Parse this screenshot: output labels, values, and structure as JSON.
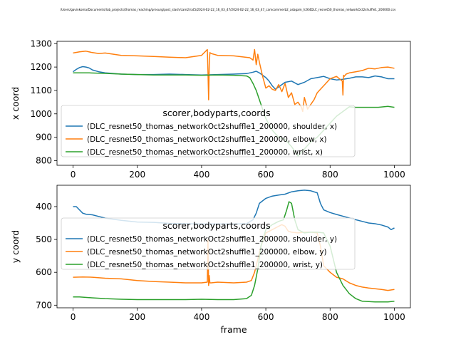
{
  "figure": {
    "suptitle": "/Users/gavinkoma/Documents/lab_projects/thomas_reaching/presurg/post_slash/cam2/rat5/2024-02-22_16_03_47/2024-02-22_16_03_47_camcommerb2_asbgam_h264DLC_resnet50_thomas_networkOct2shuffle1_200000.csv"
  },
  "colors": {
    "shoulder": "#1f77b4",
    "elbow": "#ff7f0e",
    "wrist": "#2ca02c"
  },
  "chart_data": [
    {
      "type": "line",
      "panel": "top",
      "xlabel": "",
      "ylabel": "x coord",
      "xlim": [
        -50,
        1050
      ],
      "ylim": [
        780,
        1310
      ],
      "y_inverted": false,
      "xticks": [
        0,
        200,
        400,
        600,
        800,
        1000
      ],
      "yticks": [
        800,
        900,
        1000,
        1100,
        1200,
        1300
      ],
      "grid": false,
      "legend": {
        "title": "scorer,bodyparts,coords",
        "placement": "lower-left",
        "entries": [
          "(DLC_resnet50_thomas_networkOct2shuffle1_200000, shoulder, x)",
          "(DLC_resnet50_thomas_networkOct2shuffle1_200000, elbow, x)",
          "(DLC_resnet50_thomas_networkOct2shuffle1_200000, wrist, x)"
        ]
      },
      "series": [
        {
          "name": "(DLC_resnet50_thomas_networkOct2shuffle1_200000, shoulder, x)",
          "key": "shoulder",
          "x": [
            0,
            10,
            20,
            30,
            40,
            50,
            60,
            80,
            100,
            150,
            200,
            250,
            300,
            350,
            400,
            450,
            500,
            540,
            560,
            570,
            580,
            590,
            600,
            610,
            620,
            630,
            640,
            660,
            680,
            700,
            720,
            740,
            760,
            780,
            800,
            820,
            840,
            860,
            880,
            900,
            920,
            940,
            960,
            980,
            1000
          ],
          "y": [
            1180,
            1190,
            1198,
            1202,
            1200,
            1196,
            1188,
            1180,
            1175,
            1170,
            1168,
            1168,
            1170,
            1168,
            1166,
            1168,
            1170,
            1172,
            1178,
            1182,
            1175,
            1165,
            1155,
            1140,
            1120,
            1105,
            1115,
            1135,
            1140,
            1125,
            1135,
            1150,
            1155,
            1160,
            1150,
            1145,
            1148,
            1152,
            1158,
            1158,
            1155,
            1162,
            1158,
            1150,
            1150
          ]
        },
        {
          "name": "(DLC_resnet50_thomas_networkOct2shuffle1_200000, elbow, x)",
          "key": "elbow",
          "x": [
            0,
            20,
            40,
            60,
            80,
            100,
            150,
            200,
            250,
            300,
            350,
            400,
            418,
            420,
            422,
            424,
            426,
            430,
            450,
            500,
            550,
            560,
            565,
            570,
            575,
            580,
            590,
            600,
            610,
            620,
            630,
            640,
            650,
            660,
            670,
            680,
            690,
            700,
            710,
            715,
            720,
            730,
            740,
            750,
            760,
            780,
            800,
            820,
            838,
            840,
            842,
            844,
            850,
            860,
            880,
            900,
            920,
            940,
            960,
            980,
            1000
          ],
          "y": [
            1260,
            1265,
            1268,
            1262,
            1258,
            1260,
            1250,
            1248,
            1245,
            1242,
            1240,
            1250,
            1275,
            1180,
            1060,
            1210,
            1262,
            1258,
            1250,
            1248,
            1240,
            1230,
            1275,
            1210,
            1255,
            1220,
            1160,
            1110,
            1120,
            1105,
            1100,
            1125,
            1095,
            1130,
            1070,
            1090,
            1040,
            1050,
            1030,
            1010,
            1070,
            1020,
            1040,
            1060,
            1090,
            1120,
            1150,
            1160,
            1140,
            1080,
            1165,
            1160,
            1170,
            1175,
            1180,
            1185,
            1195,
            1192,
            1198,
            1200,
            1195
          ]
        },
        {
          "name": "(DLC_resnet50_thomas_networkOct2shuffle1_200000, wrist, x)",
          "key": "wrist",
          "x": [
            0,
            50,
            100,
            150,
            200,
            250,
            300,
            350,
            400,
            450,
            500,
            540,
            550,
            560,
            570,
            580,
            590,
            600,
            620,
            640,
            660,
            680,
            700,
            720,
            740,
            760,
            780,
            800,
            820,
            840,
            860,
            880,
            900,
            950,
            980,
            1000
          ],
          "y": [
            1175,
            1175,
            1173,
            1170,
            1168,
            1166,
            1166,
            1166,
            1165,
            1166,
            1165,
            1162,
            1155,
            1130,
            1100,
            1060,
            1020,
            980,
            930,
            900,
            890,
            860,
            820,
            850,
            880,
            900,
            930,
            960,
            990,
            1010,
            1030,
            1028,
            1028,
            1028,
            1032,
            1028
          ]
        }
      ]
    },
    {
      "type": "line",
      "panel": "bottom",
      "xlabel": "frame",
      "ylabel": "y coord",
      "xlim": [
        -50,
        1050
      ],
      "ylim": [
        708,
        335
      ],
      "y_inverted": true,
      "xticks": [
        0,
        200,
        400,
        600,
        800,
        1000
      ],
      "yticks": [
        400,
        500,
        600,
        700
      ],
      "grid": false,
      "legend": {
        "title": "scorer,bodyparts,coords",
        "placement": "center-left",
        "entries": [
          "(DLC_resnet50_thomas_networkOct2shuffle1_200000, shoulder, y)",
          "(DLC_resnet50_thomas_networkOct2shuffle1_200000, elbow, y)",
          "(DLC_resnet50_thomas_networkOct2shuffle1_200000, wrist, y)"
        ]
      },
      "series": [
        {
          "name": "(DLC_resnet50_thomas_networkOct2shuffle1_200000, shoulder, y)",
          "key": "shoulder",
          "x": [
            0,
            10,
            20,
            30,
            40,
            60,
            80,
            100,
            150,
            200,
            250,
            300,
            350,
            400,
            450,
            500,
            540,
            560,
            570,
            580,
            600,
            620,
            640,
            660,
            680,
            700,
            720,
            740,
            760,
            770,
            780,
            800,
            820,
            850,
            880,
            900,
            920,
            940,
            960,
            980,
            990,
            1000
          ],
          "y": [
            400,
            400,
            410,
            420,
            423,
            425,
            430,
            435,
            442,
            447,
            448,
            451,
            452,
            453,
            453,
            453,
            452,
            440,
            420,
            390,
            375,
            368,
            365,
            362,
            355,
            352,
            350,
            352,
            358,
            390,
            410,
            418,
            424,
            432,
            440,
            445,
            450,
            452,
            456,
            462,
            470,
            465
          ]
        },
        {
          "name": "(DLC_resnet50_thomas_networkOct2shuffle1_200000, elbow, y)",
          "key": "elbow",
          "x": [
            0,
            30,
            60,
            100,
            150,
            200,
            250,
            300,
            350,
            400,
            418,
            420,
            422,
            424,
            426,
            430,
            450,
            500,
            540,
            555,
            565,
            575,
            585,
            600,
            620,
            640,
            650,
            660,
            670,
            680,
            700,
            720,
            740,
            760,
            770,
            780,
            800,
            820,
            840,
            860,
            880,
            900,
            920,
            940,
            960,
            980,
            1000
          ],
          "y": [
            615,
            614,
            615,
            618,
            620,
            625,
            628,
            630,
            632,
            632,
            630,
            500,
            640,
            610,
            632,
            632,
            630,
            632,
            630,
            625,
            600,
            560,
            520,
            480,
            470,
            460,
            455,
            460,
            475,
            478,
            480,
            478,
            478,
            480,
            520,
            580,
            600,
            615,
            620,
            632,
            640,
            645,
            648,
            650,
            652,
            655,
            652
          ]
        },
        {
          "name": "(DLC_resnet50_thomas_networkOct2shuffle1_200000, wrist, y)",
          "key": "wrist",
          "x": [
            0,
            20,
            50,
            100,
            150,
            200,
            250,
            300,
            350,
            400,
            450,
            500,
            540,
            555,
            565,
            575,
            585,
            600,
            620,
            640,
            655,
            665,
            672,
            680,
            690,
            700,
            720,
            740,
            760,
            780,
            800,
            820,
            840,
            860,
            880,
            900,
            940,
            980,
            1000
          ],
          "y": [
            675,
            675,
            677,
            680,
            682,
            683,
            683,
            683,
            683,
            682,
            683,
            683,
            680,
            670,
            640,
            590,
            520,
            470,
            455,
            445,
            440,
            410,
            385,
            390,
            440,
            470,
            480,
            478,
            478,
            480,
            520,
            600,
            640,
            665,
            680,
            688,
            690,
            690,
            688
          ]
        }
      ]
    }
  ]
}
